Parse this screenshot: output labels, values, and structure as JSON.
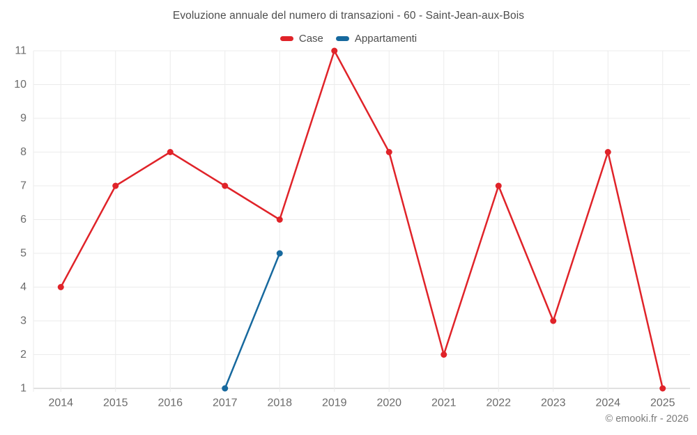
{
  "header": {
    "title": "Evoluzione annuale del numero di transazioni - 60 - Saint-Jean-aux-Bois"
  },
  "legend": {
    "items": [
      {
        "label": "Case",
        "color": "#e02329"
      },
      {
        "label": "Appartamenti",
        "color": "#17699e"
      }
    ]
  },
  "footer": {
    "credit": "© emooki.fr - 2026"
  },
  "colors": {
    "grid": "#ebebeb",
    "axis_line": "#d6d6d6",
    "tick_text": "#6b6b6b",
    "title_text": "#4d4d4d",
    "case_red": "#e02329",
    "appartamenti_blue": "#17699e"
  },
  "chart_data": {
    "type": "line",
    "title": "Evoluzione annuale del numero di transazioni - 60 - Saint-Jean-aux-Bois",
    "xlabel": "",
    "ylabel": "",
    "categories": [
      "2014",
      "2015",
      "2016",
      "2017",
      "2018",
      "2019",
      "2020",
      "2021",
      "2022",
      "2023",
      "2024",
      "2025"
    ],
    "series": [
      {
        "name": "Case",
        "color": "#e02329",
        "values": [
          4,
          7,
          8,
          7,
          6,
          11,
          8,
          2,
          7,
          3,
          8,
          1
        ]
      },
      {
        "name": "Appartamenti",
        "color": "#17699e",
        "values": [
          null,
          null,
          null,
          1,
          5,
          null,
          null,
          null,
          null,
          null,
          null,
          null
        ]
      }
    ],
    "ylim": [
      1,
      11
    ],
    "yticks": [
      1,
      2,
      3,
      4,
      5,
      6,
      7,
      8,
      9,
      10,
      11
    ],
    "grid": true,
    "legend_position": "top",
    "marker": "circle"
  }
}
